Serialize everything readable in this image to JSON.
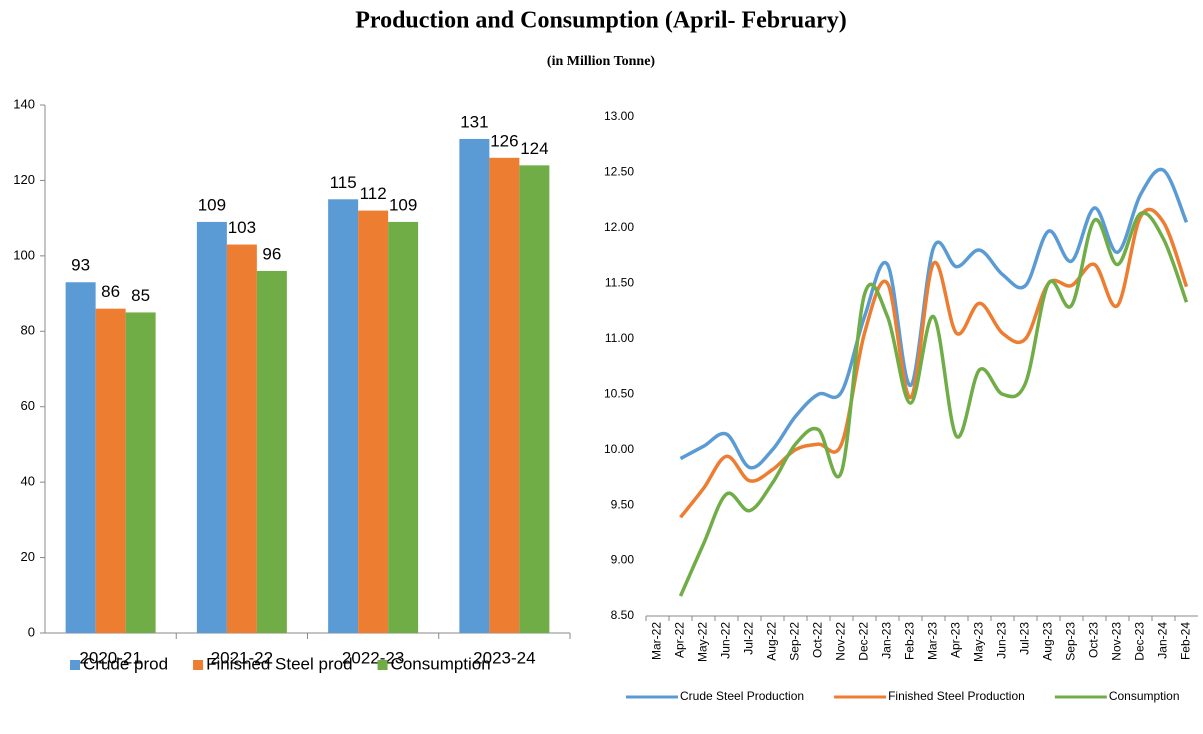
{
  "title": "Production and Consumption (April- February)",
  "subtitle": "(in Million Tonne)",
  "chart_data": [
    {
      "type": "bar",
      "categories": [
        "2020-21",
        "2021-22",
        "2022-23",
        "2023-24"
      ],
      "series": [
        {
          "name": "Crude prod",
          "color": "#5b9bd5",
          "values": [
            93,
            109,
            115,
            131
          ]
        },
        {
          "name": "Finished Steel prod",
          "color": "#ed7d31",
          "values": [
            86,
            103,
            112,
            126
          ]
        },
        {
          "name": "Consumption",
          "color": "#70ad47",
          "values": [
            85,
            96,
            109,
            124
          ]
        }
      ],
      "ylim": [
        0,
        140
      ],
      "yticks": [
        0,
        20,
        40,
        60,
        80,
        100,
        120,
        140
      ],
      "data_labels": true,
      "grid": false,
      "legend": "bottom"
    },
    {
      "type": "line",
      "categories": [
        "Mar-22",
        "Apr-22",
        "May-22",
        "Jun-22",
        "Jul-22",
        "Aug-22",
        "Sep-22",
        "Oct-22",
        "Nov-22",
        "Dec-22",
        "Jan-23",
        "Feb-23",
        "Mar-23",
        "Apr-23",
        "May-23",
        "Jun-23",
        "Jul-23",
        "Aug-23",
        "Sep-23",
        "Oct-23",
        "Nov-23",
        "Dec-23",
        "Jan-24",
        "Feb-24"
      ],
      "series": [
        {
          "name": "Crude Steel Production",
          "color": "#5b9bd5",
          "values": [
            null,
            9.92,
            10.03,
            10.14,
            9.84,
            10.0,
            10.3,
            10.5,
            10.52,
            11.2,
            11.67,
            10.58,
            11.82,
            11.65,
            11.8,
            11.58,
            11.48,
            11.97,
            11.7,
            12.18,
            11.78,
            12.3,
            12.52,
            12.05
          ]
        },
        {
          "name": "Finished Steel Production",
          "color": "#ed7d31",
          "values": [
            null,
            9.39,
            9.65,
            9.94,
            9.72,
            9.82,
            10.0,
            10.05,
            10.05,
            11.05,
            11.5,
            10.47,
            11.68,
            11.05,
            11.32,
            11.05,
            11.0,
            11.5,
            11.48,
            11.67,
            11.3,
            12.1,
            12.05,
            11.47
          ]
        },
        {
          "name": "Consumption",
          "color": "#70ad47",
          "values": [
            null,
            8.68,
            9.15,
            9.6,
            9.45,
            9.7,
            10.05,
            10.18,
            9.8,
            11.4,
            11.2,
            10.42,
            11.2,
            10.12,
            10.72,
            10.5,
            10.6,
            11.5,
            11.3,
            12.07,
            11.67,
            12.13,
            11.9,
            11.33
          ]
        }
      ],
      "ylim": [
        8.5,
        13
      ],
      "yticks": [
        {
          "value": 8.5,
          "label": "8.50"
        },
        {
          "value": 9,
          "label": "9.00"
        },
        {
          "value": 9.5,
          "label": "9.50"
        },
        {
          "value": 10,
          "label": "10.00"
        },
        {
          "value": 10.5,
          "label": "10.50"
        },
        {
          "value": 11,
          "label": "11.00"
        },
        {
          "value": 11.5,
          "label": "11.50"
        },
        {
          "value": 12,
          "label": "12.00"
        },
        {
          "value": 12.5,
          "label": "12.50"
        },
        {
          "value": 13,
          "label": "13.00"
        }
      ],
      "smooth": true,
      "grid": false,
      "legend": "bottom"
    }
  ]
}
